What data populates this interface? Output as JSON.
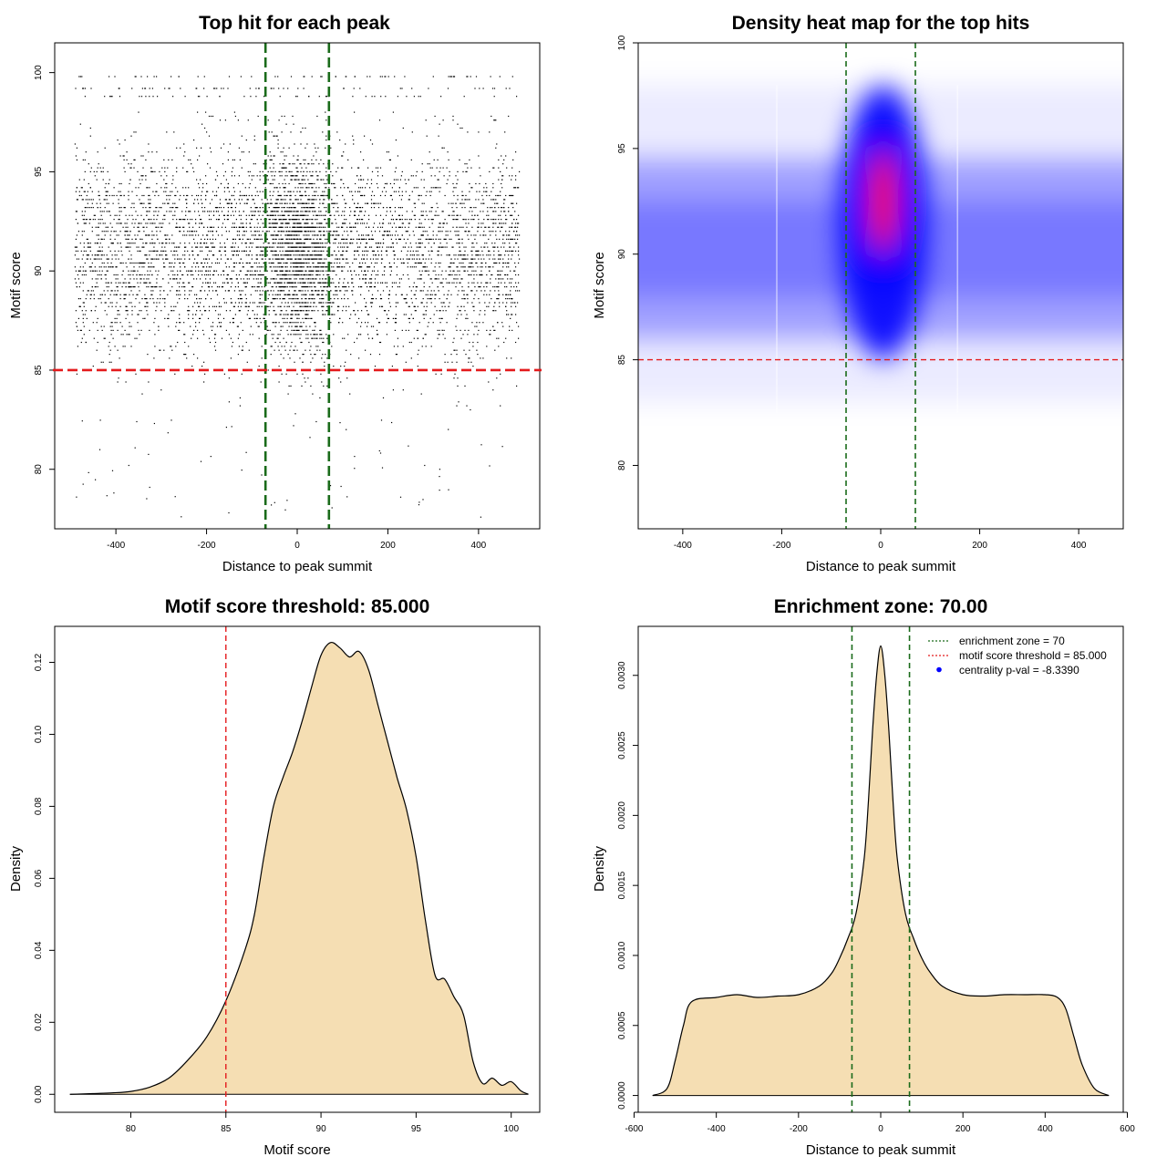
{
  "colors": {
    "reference_line": "#1a6b1a",
    "threshold_line": "#e41a1c",
    "density_fill": "#f5deb3",
    "heat_low": "#ffffff",
    "heat_mid": "#0000ff",
    "heat_high": "#ff0000",
    "legend_point": "#0000ff"
  },
  "chart_data": [
    {
      "id": "scatter",
      "type": "scatter",
      "title": "Top hit for each peak",
      "xlabel": "Distance to peak summit",
      "ylabel": "Motif score",
      "xlim": [
        -535,
        535
      ],
      "ylim": [
        77,
        101.5
      ],
      "xticks": [
        -400,
        -200,
        0,
        200,
        400
      ],
      "yticks": [
        80,
        85,
        90,
        95,
        100
      ],
      "vlines": [
        -70,
        70
      ],
      "hline": 85,
      "point_cloud": {
        "x_range": [
          -490,
          490
        ],
        "central_band": [
          -70,
          70
        ],
        "score_mode": 91,
        "score_max": 98,
        "top_scores": [
          98.8,
          99.2,
          99.8
        ]
      }
    },
    {
      "id": "heatmap",
      "type": "heatmap",
      "title": "Density heat map for the top hits",
      "xlabel": "Distance to peak summit",
      "ylabel": "Motif score",
      "xlim": [
        -490,
        490
      ],
      "ylim": [
        77,
        100
      ],
      "xticks": [
        -400,
        -200,
        0,
        200,
        400
      ],
      "yticks": [
        80,
        85,
        90,
        95,
        100
      ],
      "vlines": [
        -70,
        70
      ],
      "hline": 85,
      "density_peak": {
        "x": 5,
        "y": 92.5
      },
      "colormap": [
        "white",
        "blue",
        "red"
      ]
    },
    {
      "id": "score_density",
      "type": "area",
      "title": "Motif score threshold: 85.000",
      "xlabel": "Motif score",
      "ylabel": "Density",
      "xlim": [
        76,
        101.5
      ],
      "ylim": [
        -0.005,
        0.13
      ],
      "xticks": [
        80,
        85,
        90,
        95,
        100
      ],
      "yticks": [
        0.0,
        0.02,
        0.04,
        0.06,
        0.08,
        0.1,
        0.12
      ],
      "ytick_labels": [
        "0.00",
        "0.02",
        "0.04",
        "0.06",
        "0.08",
        "0.10",
        "0.12"
      ],
      "vline": 85,
      "x": [
        76.8,
        78,
        79,
        80,
        81,
        82,
        83,
        84,
        85,
        86,
        86.5,
        87,
        87.5,
        88,
        88.5,
        89,
        89.5,
        90,
        90.5,
        91,
        91.5,
        92,
        92.5,
        93,
        93.5,
        94,
        94.5,
        95,
        95.5,
        96,
        96.5,
        97,
        97.5,
        98,
        98.5,
        99,
        99.5,
        100,
        100.5,
        100.9
      ],
      "y": [
        0.0,
        0.0002,
        0.0004,
        0.0008,
        0.002,
        0.0045,
        0.0095,
        0.016,
        0.026,
        0.04,
        0.05,
        0.066,
        0.08,
        0.088,
        0.095,
        0.1035,
        0.113,
        0.122,
        0.1255,
        0.124,
        0.1215,
        0.123,
        0.118,
        0.108,
        0.098,
        0.088,
        0.079,
        0.066,
        0.048,
        0.033,
        0.032,
        0.027,
        0.022,
        0.009,
        0.003,
        0.0045,
        0.0025,
        0.0035,
        0.001,
        0.0
      ]
    },
    {
      "id": "distance_density",
      "type": "area",
      "title": "Enrichment zone: 70.00",
      "xlabel": "Distance to peak summit",
      "ylabel": "Density",
      "xlim": [
        -590,
        590
      ],
      "ylim": [
        -0.00012,
        0.00335
      ],
      "xticks": [
        -600,
        -400,
        -200,
        0,
        200,
        400,
        600
      ],
      "yticks": [
        0.0,
        0.0005,
        0.001,
        0.0015,
        0.002,
        0.0025,
        0.003
      ],
      "ytick_labels": [
        "0.0000",
        "0.0005",
        "0.0010",
        "0.0015",
        "0.0020",
        "0.0025",
        "0.0030"
      ],
      "vlines": [
        -70,
        70
      ],
      "x": [
        -555,
        -520,
        -500,
        -480,
        -460,
        -400,
        -350,
        -300,
        -250,
        -200,
        -150,
        -120,
        -100,
        -80,
        -60,
        -40,
        -30,
        -20,
        -10,
        0,
        10,
        20,
        30,
        40,
        60,
        80,
        100,
        120,
        150,
        200,
        250,
        300,
        350,
        400,
        430,
        450,
        470,
        490,
        520,
        555
      ],
      "y": [
        0.0,
        5e-05,
        0.00025,
        0.0005,
        0.00067,
        0.0007,
        0.00072,
        0.0007,
        0.00071,
        0.00072,
        0.00078,
        0.00087,
        0.00098,
        0.00112,
        0.0013,
        0.0017,
        0.0021,
        0.0026,
        0.003,
        0.00321,
        0.003,
        0.0026,
        0.0021,
        0.0017,
        0.0013,
        0.00112,
        0.00098,
        0.00088,
        0.00078,
        0.00072,
        0.00071,
        0.00072,
        0.00072,
        0.00072,
        0.0007,
        0.00062,
        0.00042,
        0.00022,
        5e-05,
        0.0
      ],
      "legend": [
        {
          "label": "enrichment zone = 70",
          "style": "dotted-line",
          "color": "#1a6b1a"
        },
        {
          "label": "motif score threshold = 85.000",
          "style": "dotted-line",
          "color": "#e41a1c"
        },
        {
          "label": "centrality p-val = -8.3390",
          "style": "point",
          "color": "#0000ff"
        }
      ],
      "legend_position": "top-right"
    }
  ]
}
